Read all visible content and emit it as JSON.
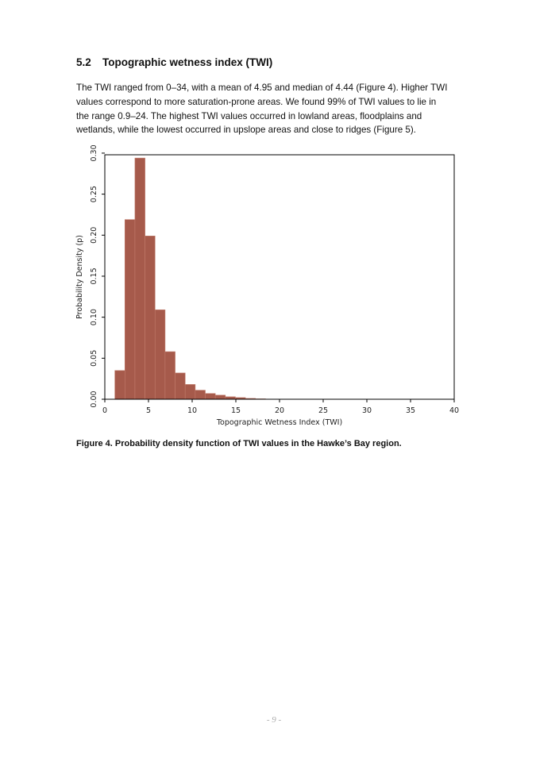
{
  "heading": {
    "number": "5.2",
    "title": "Topographic wetness index (TWI)"
  },
  "paragraph": [
    "The TWI ranged from 0–34, with a mean of 4.95 and median of 4.44 (Figure 4). Higher TWI",
    "values correspond to more saturation-prone areas. We found 99% of TWI values to lie in",
    "the range 0.9–24. The highest TWI values occurred in lowland areas, floodplains and",
    "wetlands, while the lowest occurred in upslope areas and close to ridges (Figure 5)."
  ],
  "chart_data": {
    "type": "histogram",
    "x_label": "Topographic Wetness Index (TWI)",
    "y_label": "Probability Density (p)",
    "bins": [
      1.15,
      2.3,
      3.45,
      4.6,
      5.75,
      6.9,
      8.05,
      9.2,
      10.35,
      11.5,
      12.65,
      13.8,
      14.95,
      16.1,
      17.25,
      18.4
    ],
    "values": [
      0.035,
      0.219,
      0.294,
      0.199,
      0.109,
      0.058,
      0.032,
      0.018,
      0.011,
      0.007,
      0.005,
      0.003,
      0.002,
      0.001,
      0.0005
    ],
    "color": "#a65a4b",
    "xlim": [
      0,
      40
    ],
    "xticks": [
      0,
      5,
      10,
      15,
      20,
      25,
      30,
      35,
      40
    ],
    "ylim": [
      0,
      0.298
    ],
    "yticks": [
      {
        "value": 0,
        "label": "0.00"
      },
      0.05,
      {
        "value": 0.1,
        "label": "0.10"
      },
      0.15,
      {
        "value": 0.2,
        "label": "0.20"
      },
      0.25,
      {
        "value": 0.3,
        "label": "0.30"
      }
    ]
  },
  "caption": "Figure 4. Probability density function of TWI values in the Hawke’s Bay region.",
  "page_number": "- 9 -"
}
